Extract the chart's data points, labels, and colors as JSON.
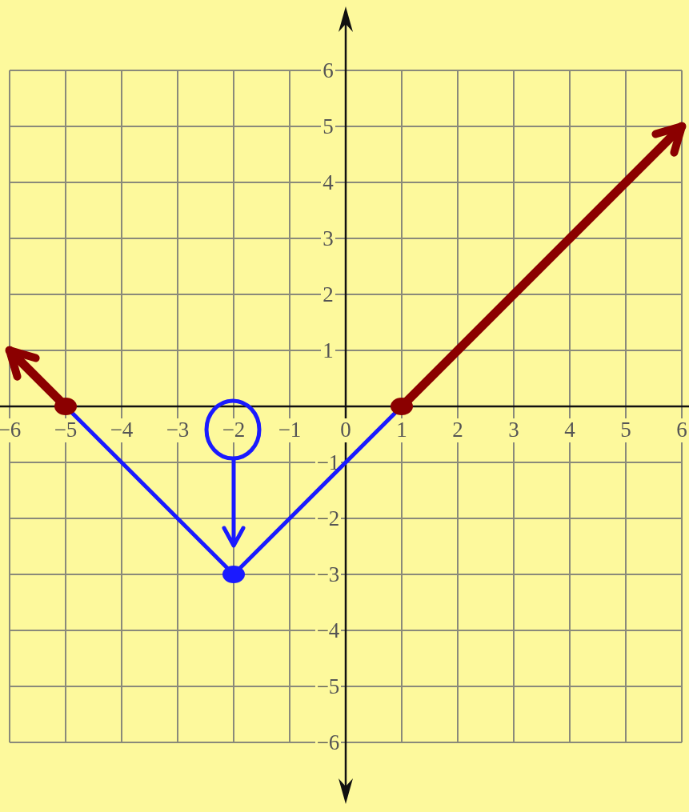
{
  "chart_data": {
    "type": "line",
    "xlim": [
      -6,
      6
    ],
    "ylim": [
      -6,
      6
    ],
    "xticks": [
      -6,
      -5,
      -4,
      -3,
      -2,
      -1,
      0,
      1,
      2,
      3,
      4,
      5,
      6
    ],
    "yticks": [
      -6,
      -5,
      -4,
      -3,
      -2,
      -1,
      1,
      2,
      3,
      4,
      5,
      6
    ],
    "grid": true,
    "line_style": "solid",
    "series": [
      {
        "color": "#1a1aff",
        "x": [
          -5,
          -2,
          1
        ],
        "values": [
          0,
          -3,
          0
        ]
      },
      {
        "color": "#8b0000",
        "x": [
          -6,
          -5
        ],
        "values": [
          1,
          0
        ]
      },
      {
        "color": "#8b0000",
        "x": [
          1,
          6
        ],
        "values": [
          0,
          5
        ]
      },
      {
        "type": "scatter",
        "marker": "circle",
        "color": "#8b0000",
        "x": [
          -5,
          1
        ],
        "values": [
          0,
          0
        ]
      },
      {
        "type": "scatter",
        "marker": "circle",
        "color": "#1a1aff",
        "x": [
          -2
        ],
        "values": [
          -3
        ]
      }
    ]
  }
}
